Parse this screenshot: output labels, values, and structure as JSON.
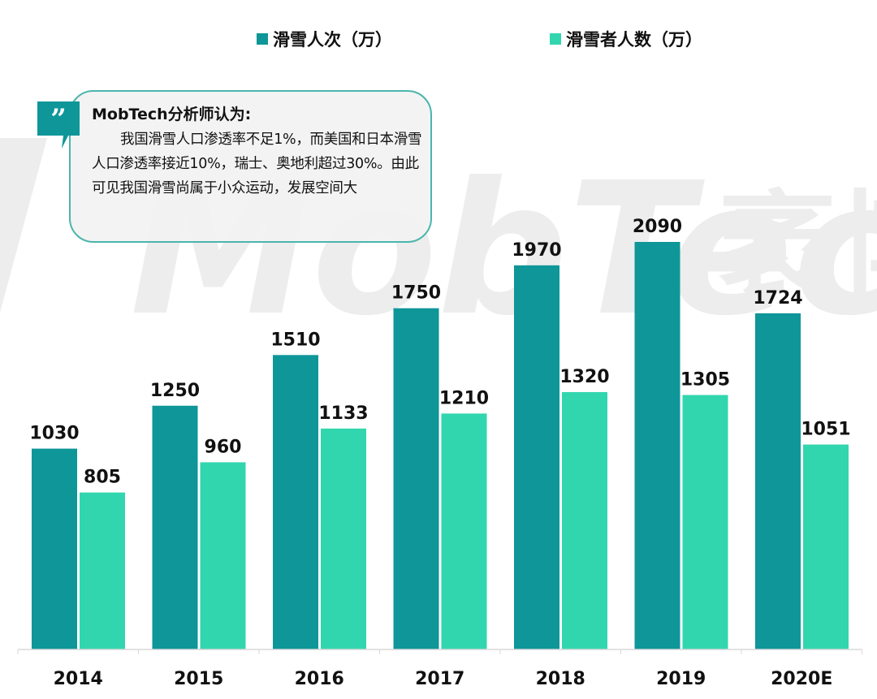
{
  "colors": {
    "primary": "#0e9699",
    "secondary": "#32d6ae",
    "watermark": "#ececec",
    "callout_border": "#4bb5ad"
  },
  "legend": [
    {
      "label": "滑雪人次（万）",
      "color": "#0e9699"
    },
    {
      "label": "滑雪者人数（万）",
      "color": "#32d6ae"
    }
  ],
  "callout": {
    "icon": "quote-icon",
    "title": "MobTech分析师认为:",
    "body": "我国滑雪人口渗透率不足1%，而美国和日本滑雪人口渗透率接近10%，瑞士、奥地利超过30%。由此可见我国滑雪尚属于小众运动，发展空间大"
  },
  "watermark": {
    "brand": "MobTech",
    "cn": "袤博"
  },
  "chart_data": {
    "type": "bar",
    "title": "",
    "xlabel": "",
    "ylabel": "",
    "ylim": [
      0,
      2300
    ],
    "grid": false,
    "legend_position": "top-center",
    "categories": [
      "2014",
      "2015",
      "2016",
      "2017",
      "2018",
      "2019",
      "2020E"
    ],
    "series": [
      {
        "name": "滑雪人次（万）",
        "color": "#0e9699",
        "values": [
          1030,
          1250,
          1510,
          1750,
          1970,
          2090,
          1724
        ]
      },
      {
        "name": "滑雪者人数（万）",
        "color": "#32d6ae",
        "values": [
          805,
          960,
          1133,
          1210,
          1320,
          1305,
          1051
        ]
      }
    ]
  }
}
